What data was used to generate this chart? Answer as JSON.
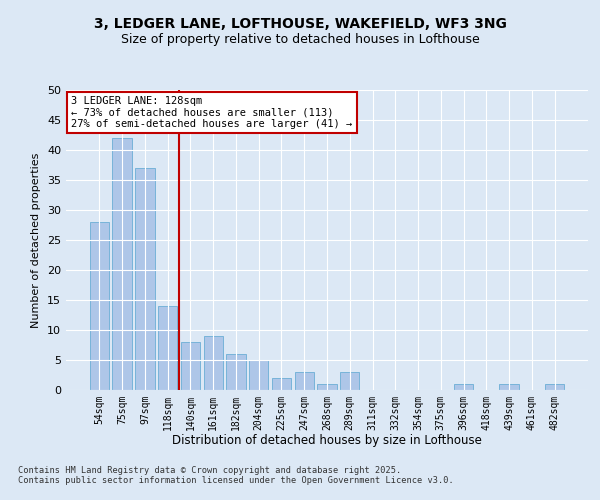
{
  "title": "3, LEDGER LANE, LOFTHOUSE, WAKEFIELD, WF3 3NG",
  "subtitle": "Size of property relative to detached houses in Lofthouse",
  "xlabel": "Distribution of detached houses by size in Lofthouse",
  "ylabel": "Number of detached properties",
  "categories": [
    "54sqm",
    "75sqm",
    "97sqm",
    "118sqm",
    "140sqm",
    "161sqm",
    "182sqm",
    "204sqm",
    "225sqm",
    "247sqm",
    "268sqm",
    "289sqm",
    "311sqm",
    "332sqm",
    "354sqm",
    "375sqm",
    "396sqm",
    "418sqm",
    "439sqm",
    "461sqm",
    "482sqm"
  ],
  "values": [
    28,
    42,
    37,
    14,
    8,
    9,
    6,
    5,
    2,
    3,
    1,
    3,
    0,
    0,
    0,
    0,
    1,
    0,
    1,
    0,
    1
  ],
  "bar_color": "#aec6e8",
  "bar_edge_color": "#6baed6",
  "highlight_color": "#c00000",
  "vline_index": 3.5,
  "ylim": [
    0,
    50
  ],
  "yticks": [
    0,
    5,
    10,
    15,
    20,
    25,
    30,
    35,
    40,
    45,
    50
  ],
  "annotation_title": "3 LEDGER LANE: 128sqm",
  "annotation_line1": "← 73% of detached houses are smaller (113)",
  "annotation_line2": "27% of semi-detached houses are larger (41) →",
  "footer_line1": "Contains HM Land Registry data © Crown copyright and database right 2025.",
  "footer_line2": "Contains public sector information licensed under the Open Government Licence v3.0.",
  "background_color": "#dce8f5",
  "plot_bg_color": "#dce8f5",
  "grid_color": "#ffffff",
  "title_fontsize": 10,
  "subtitle_fontsize": 9
}
